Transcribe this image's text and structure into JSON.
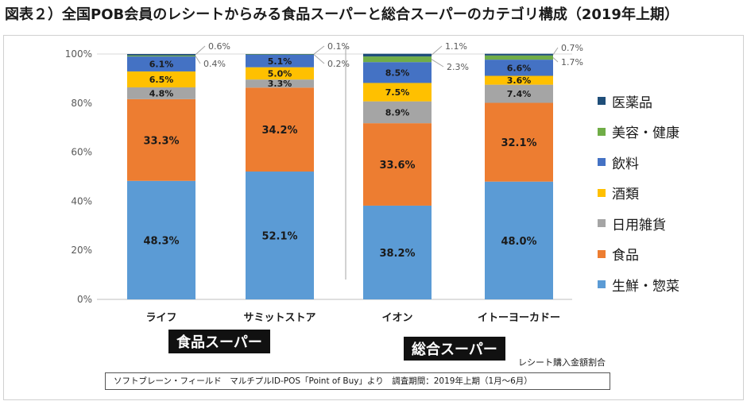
{
  "title": "図表２）全国POB会員のレシートからみる食品スーパーと総合スーパーのカテゴリ構成（2019年上期）",
  "chart_data": {
    "type": "bar",
    "stacked": true,
    "title": "図表２）全国POB会員のレシートからみる食品スーパーと総合スーパーのカテゴリ構成（2019年上期）",
    "categories": [
      "ライフ",
      "サミットストア",
      "イオン",
      "イトーヨーカドー"
    ],
    "ylim": [
      0,
      100
    ],
    "yticks": [
      "0%",
      "20%",
      "40%",
      "60%",
      "80%",
      "100%"
    ],
    "series": [
      {
        "name": "生鮮・惣菜",
        "color": "#5b9bd5",
        "values": [
          48.3,
          52.1,
          38.2,
          48.0
        ],
        "labels": [
          "48.3%",
          "52.1%",
          "38.2%",
          "48.0%"
        ]
      },
      {
        "name": "食品",
        "color": "#ed7d31",
        "values": [
          33.3,
          34.2,
          33.6,
          32.1
        ],
        "labels": [
          "33.3%",
          "34.2%",
          "33.6%",
          "32.1%"
        ]
      },
      {
        "name": "日用雑貨",
        "color": "#a5a5a5",
        "values": [
          4.8,
          3.3,
          8.9,
          7.4
        ],
        "labels": [
          "4.8%",
          "3.3%",
          "8.9%",
          "7.4%"
        ]
      },
      {
        "name": "酒類",
        "color": "#ffc000",
        "values": [
          6.5,
          5.0,
          7.5,
          3.6
        ],
        "labels": [
          "6.5%",
          "5.0%",
          "7.5%",
          "3.6%"
        ]
      },
      {
        "name": "飲料",
        "color": "#4472c4",
        "values": [
          6.1,
          5.1,
          8.5,
          6.6
        ],
        "labels": [
          "6.1%",
          "5.1%",
          "8.5%",
          "6.6%"
        ]
      },
      {
        "name": "美容・健康",
        "color": "#70ad47",
        "values": [
          0.4,
          0.2,
          2.3,
          1.7
        ],
        "labels": [
          "0.4%",
          "0.2%",
          "2.3%",
          "1.7%"
        ]
      },
      {
        "name": "医薬品",
        "color": "#1f4e79",
        "values": [
          0.6,
          0.1,
          1.1,
          0.7
        ],
        "labels": [
          "0.6%",
          "0.1%",
          "1.1%",
          "0.7%"
        ]
      }
    ],
    "legend_order": [
      "医薬品",
      "美容・健康",
      "飲料",
      "酒類",
      "日用雑貨",
      "食品",
      "生鮮・惣菜"
    ],
    "legend_position": "right",
    "groups": [
      "食品スーパー",
      "総合スーパー"
    ],
    "note": "レシート購入金額割合"
  },
  "source": "ソフトブレーン・フィールド　マルチプルID-POS「Point of Buy」より　調査期間：2019年上期（1月～6月）"
}
